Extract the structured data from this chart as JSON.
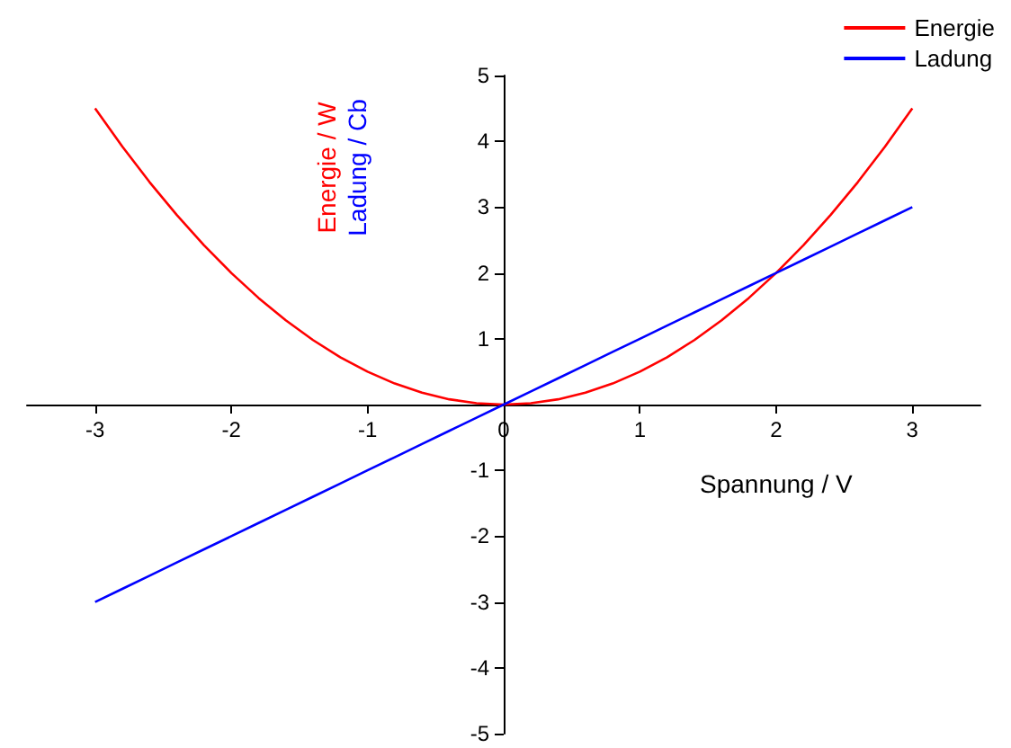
{
  "chart_data": {
    "type": "line",
    "xlabel": "Spannung / V",
    "ylabel": "Energie / W\nLadung / Cb",
    "x": [
      -3,
      -2.8,
      -2.6,
      -2.4,
      -2.2,
      -2,
      -1.8,
      -1.6,
      -1.4,
      -1.2,
      -1,
      -0.8,
      -0.6,
      -0.4,
      -0.2,
      0,
      0.2,
      0.4,
      0.6,
      0.8,
      1,
      1.2,
      1.4,
      1.6,
      1.8,
      2,
      2.2,
      2.4,
      2.6,
      2.8,
      3
    ],
    "series": [
      {
        "name": "Energie",
        "color": "#ff0000",
        "values": [
          4.5,
          3.92,
          3.38,
          2.88,
          2.42,
          2,
          1.62,
          1.28,
          0.98,
          0.72,
          0.5,
          0.32,
          0.18,
          0.08,
          0.02,
          0,
          0.02,
          0.08,
          0.18,
          0.32,
          0.5,
          0.72,
          0.98,
          1.28,
          1.62,
          2,
          2.42,
          2.88,
          3.38,
          3.92,
          4.5
        ]
      },
      {
        "name": "Ladung",
        "color": "#0000ff",
        "values": [
          -3,
          -2.8,
          -2.6,
          -2.4,
          -2.2,
          -2,
          -1.8,
          -1.6,
          -1.4,
          -1.2,
          -1,
          -0.8,
          -0.6,
          -0.4,
          -0.2,
          0,
          0.2,
          0.4,
          0.6,
          0.8,
          1,
          1.2,
          1.4,
          1.6,
          1.8,
          2,
          2.2,
          2.4,
          2.6,
          2.8,
          3
        ]
      }
    ],
    "xlim": [
      -3.5,
      3.5
    ],
    "xticks": [
      -3,
      -2,
      -1,
      0,
      1,
      2,
      3
    ],
    "ylim": [
      -5,
      5
    ],
    "yticks": [
      -5,
      -4,
      -3,
      -2,
      -1,
      {
        "value": 0,
        "label": null
      },
      1,
      2,
      3,
      4,
      5
    ],
    "grid": false,
    "legend": "top right",
    "marker": "none",
    "line_style": "solid"
  }
}
